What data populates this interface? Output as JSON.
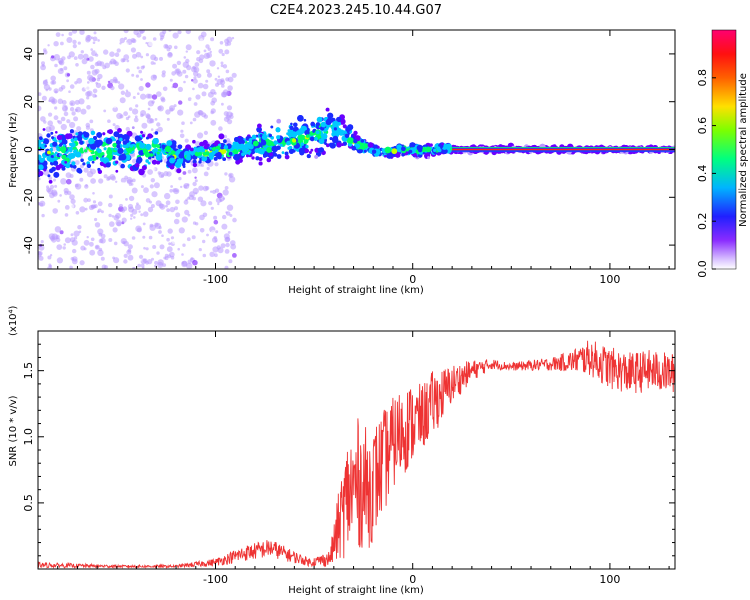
{
  "figure_title": "C2E4.2023.245.10.44.G07",
  "chart_data": [
    {
      "type": "heatmap",
      "xlabel": "Height of straight line (km)",
      "ylabel": "Frequency (Hz)",
      "xlim": [
        -190,
        133
      ],
      "ylim": [
        -50,
        50
      ],
      "x_ticks": [
        -100,
        0,
        100
      ],
      "y_ticks": [
        -40,
        -20,
        0,
        20,
        40
      ],
      "colorbar": {
        "label": "Normalized spectral amplitude",
        "range": [
          0.0,
          1.0
        ],
        "ticks": [
          0.0,
          0.2,
          0.4,
          0.6,
          0.8
        ],
        "colors": [
          "#ffffff",
          "#b899ff",
          "#6a00ff",
          "#1b2cff",
          "#00c8ff",
          "#00ff66",
          "#c8ff00",
          "#ffd000",
          "#ff5000",
          "#ff0066"
        ]
      },
      "ridge": {
        "x": [
          -190,
          -165,
          -145,
          -130,
          -120,
          -110,
          -100,
          -90,
          -80,
          -70,
          -60,
          -50,
          -40,
          -35,
          -30,
          -25,
          -20,
          -15,
          -10,
          -5,
          0,
          5,
          10,
          15,
          20,
          60,
          100,
          133
        ],
        "freq": [
          -2,
          0,
          -1,
          0,
          -3,
          -2,
          -1,
          0,
          2,
          3,
          4,
          6,
          8,
          6,
          3,
          1,
          0,
          -1,
          -1,
          0,
          0,
          -1,
          0,
          1,
          0,
          0,
          0,
          0
        ],
        "width": [
          9,
          9,
          8,
          8,
          5,
          4,
          4,
          5,
          6,
          7,
          8,
          8,
          8,
          6,
          4,
          3,
          2,
          2,
          2,
          2,
          2,
          2,
          2,
          2,
          1,
          1,
          1,
          1
        ]
      }
    },
    {
      "type": "line",
      "xlabel": "Height of straight line (km)",
      "ylabel": "SNR (10 * v/v)",
      "y_multiplier": "(x10⁴)",
      "xlim": [
        -190,
        133
      ],
      "ylim": [
        0,
        1.8
      ],
      "x_ticks": [
        -100,
        0,
        100
      ],
      "y_ticks": [
        0.5,
        1.0,
        1.5
      ],
      "color": "#ee3333",
      "series": [
        {
          "x": [
            -190,
            -150,
            -120,
            -100,
            -85,
            -72,
            -62,
            -52,
            -42,
            -38,
            -33,
            -28,
            -22,
            -15,
            -10,
            -5,
            0,
            5,
            10,
            15,
            20,
            30,
            40,
            50,
            60,
            70,
            80,
            90,
            100,
            110,
            120,
            133
          ],
          "y": [
            0.03,
            0.02,
            0.02,
            0.05,
            0.12,
            0.16,
            0.1,
            0.05,
            0.08,
            0.3,
            0.55,
            0.65,
            0.6,
            0.8,
            0.95,
            1.05,
            1.1,
            1.15,
            1.25,
            1.32,
            1.4,
            1.5,
            1.55,
            1.53,
            1.54,
            1.55,
            1.57,
            1.6,
            1.52,
            1.48,
            1.5,
            1.48
          ],
          "noise": [
            0.02,
            0.01,
            0.01,
            0.03,
            0.06,
            0.07,
            0.05,
            0.03,
            0.06,
            0.25,
            0.45,
            0.5,
            0.45,
            0.4,
            0.35,
            0.35,
            0.3,
            0.25,
            0.25,
            0.2,
            0.15,
            0.08,
            0.04,
            0.03,
            0.04,
            0.05,
            0.08,
            0.14,
            0.16,
            0.16,
            0.16,
            0.15
          ]
        }
      ]
    }
  ]
}
